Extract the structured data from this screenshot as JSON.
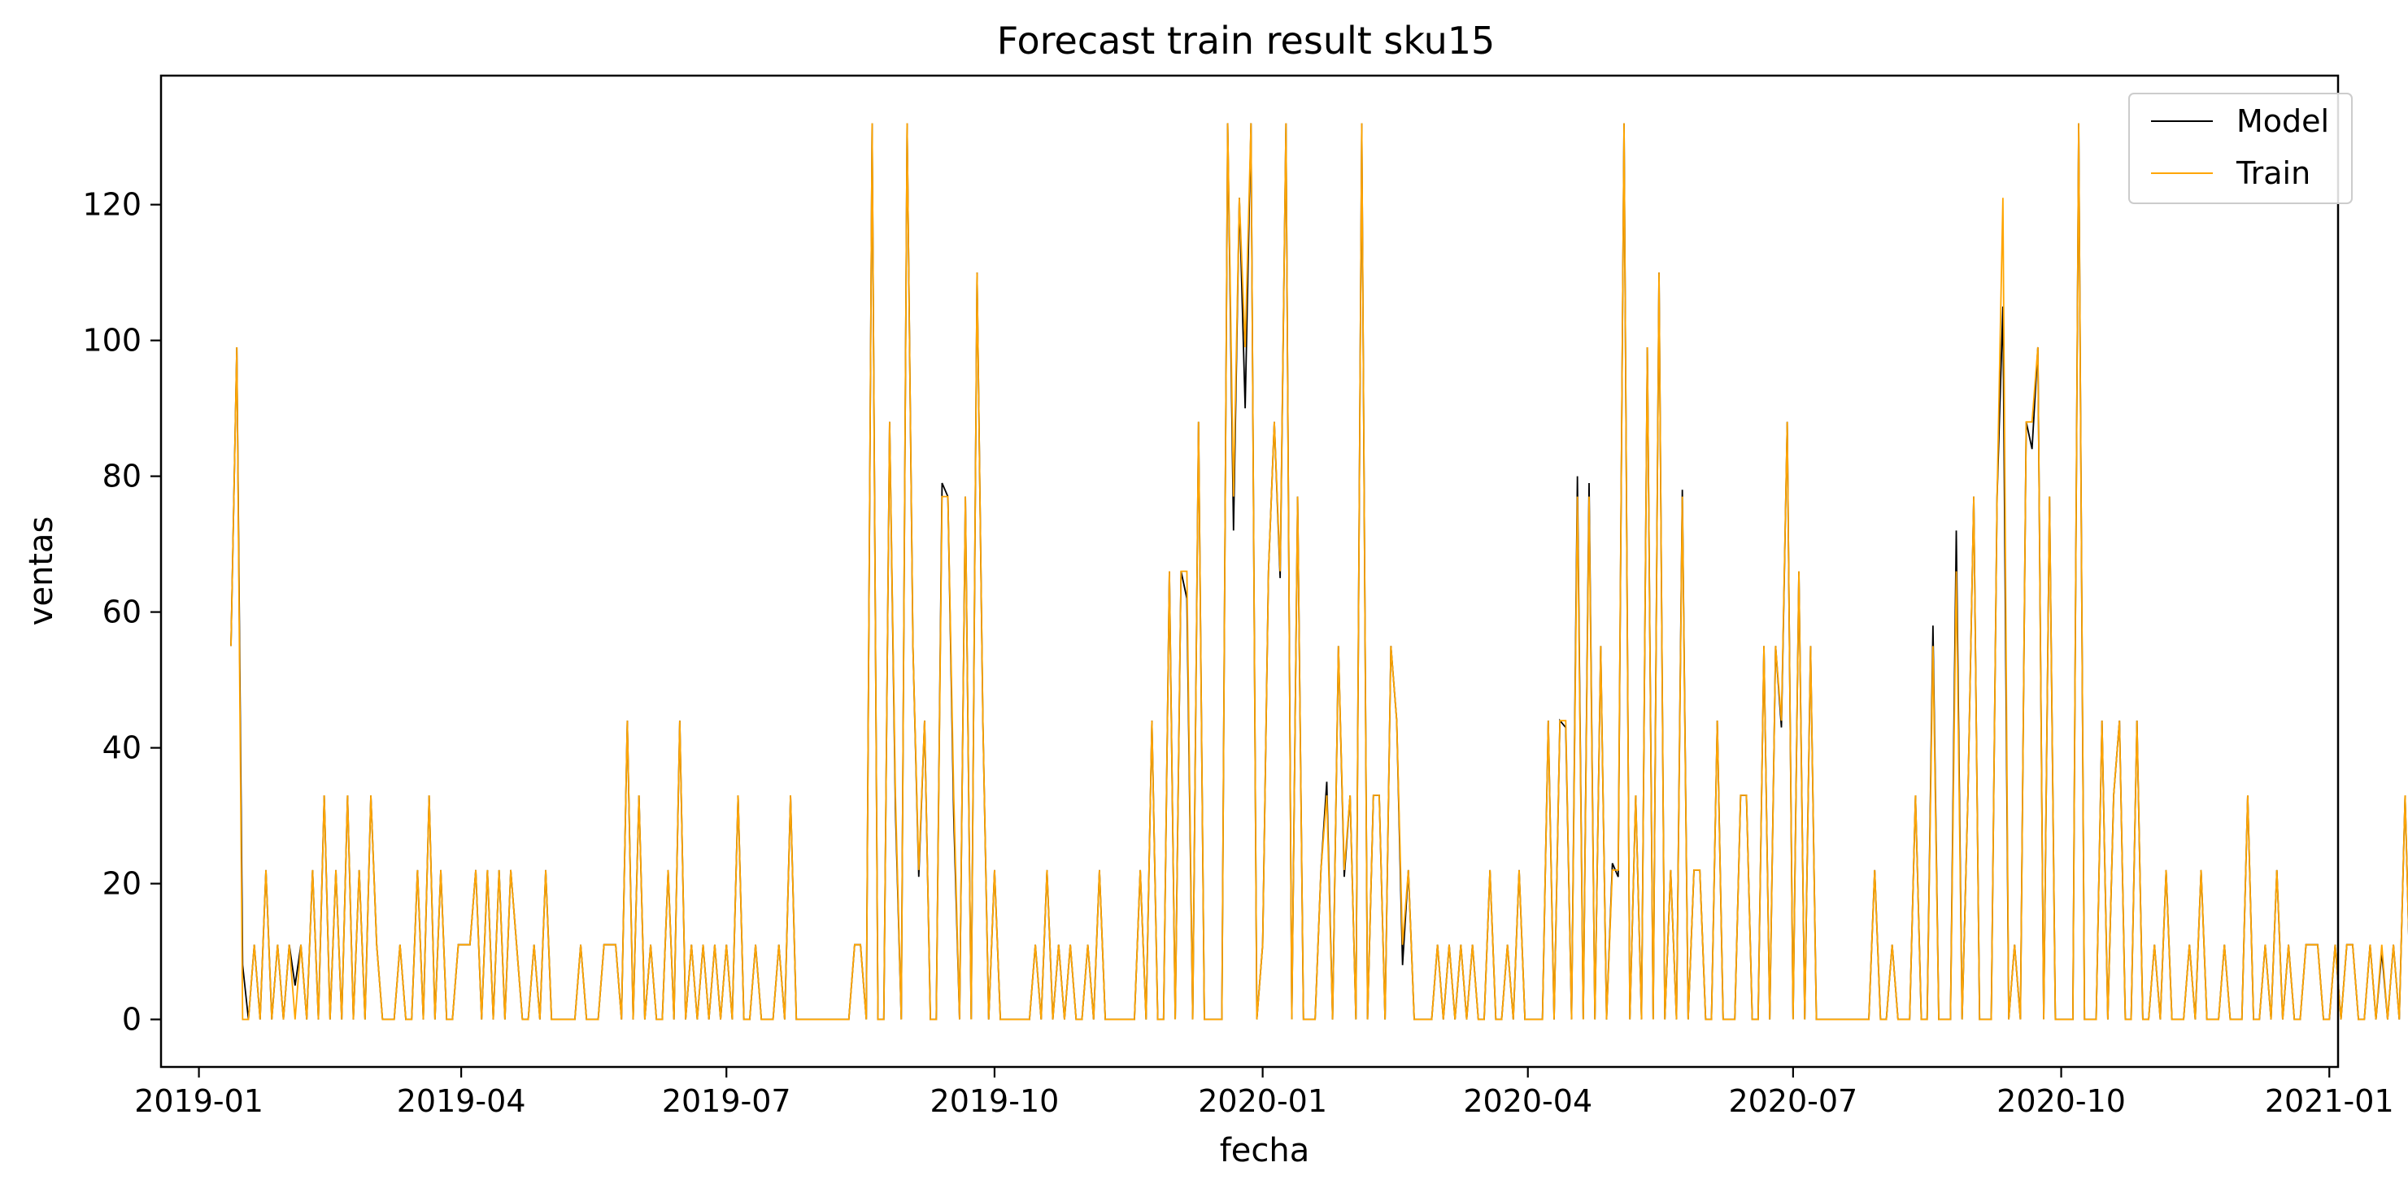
{
  "chart_data": {
    "type": "line",
    "title": "Forecast train result sku15",
    "xlabel": "fecha",
    "ylabel": "ventas",
    "x_ticks": [
      "2019-01",
      "2019-04",
      "2019-07",
      "2019-10",
      "2020-01",
      "2020-04",
      "2020-07",
      "2020-10",
      "2021-01"
    ],
    "y_ticks": [
      0,
      20,
      40,
      60,
      80,
      100,
      120
    ],
    "xlim": [
      "2018-12-19",
      "2021-01-04"
    ],
    "ylim": [
      -7,
      139
    ],
    "legend": {
      "position": "top-right",
      "entries": [
        "Model",
        "Train"
      ]
    },
    "grid": false,
    "series": [
      {
        "name": "Model",
        "color": "#000000",
        "x_start": "2019-01-12",
        "step_days": 2,
        "values": [
          55,
          99,
          8,
          0,
          11,
          0,
          22,
          0,
          11,
          0,
          11,
          5,
          11,
          0,
          22,
          0,
          33,
          0,
          22,
          0,
          33,
          0,
          22,
          0,
          33,
          11,
          0,
          0,
          0,
          11,
          0,
          0,
          22,
          0,
          33,
          0,
          22,
          0,
          0,
          11,
          11,
          11,
          22,
          0,
          22,
          0,
          22,
          0,
          22,
          11,
          0,
          0,
          11,
          0,
          22,
          0,
          0,
          0,
          0,
          0,
          11,
          0,
          0,
          0,
          11,
          11,
          11,
          0,
          44,
          0,
          33,
          0,
          11,
          0,
          0,
          22,
          0,
          44,
          0,
          11,
          0,
          11,
          0,
          11,
          0,
          11,
          0,
          33,
          0,
          0,
          11,
          0,
          0,
          0,
          11,
          0,
          33,
          0,
          0,
          0,
          0,
          0,
          0,
          0,
          0,
          0,
          0,
          11,
          11,
          0,
          132,
          0,
          0,
          88,
          31,
          0,
          132,
          55,
          21,
          44,
          0,
          0,
          79,
          77,
          30,
          0,
          77,
          0,
          110,
          44,
          0,
          22,
          0,
          0,
          0,
          0,
          0,
          0,
          11,
          0,
          22,
          0,
          11,
          0,
          11,
          0,
          0,
          11,
          0,
          22,
          0,
          0,
          0,
          0,
          0,
          0,
          22,
          0,
          44,
          0,
          0,
          66,
          0,
          66,
          62,
          0,
          88,
          0,
          0,
          0,
          0,
          132,
          72,
          121,
          90,
          132,
          0,
          11,
          66,
          88,
          65,
          132,
          0,
          77,
          0,
          0,
          0,
          22,
          35,
          0,
          55,
          21,
          33,
          0,
          132,
          0,
          33,
          33,
          0,
          55,
          44,
          8,
          22,
          0,
          0,
          0,
          0,
          11,
          0,
          11,
          0,
          11,
          0,
          11,
          0,
          0,
          22,
          0,
          0,
          11,
          0,
          22,
          0,
          0,
          0,
          0,
          44,
          0,
          44,
          43,
          0,
          80,
          0,
          79,
          0,
          55,
          0,
          23,
          21,
          132,
          0,
          33,
          0,
          99,
          0,
          110,
          0,
          22,
          0,
          78,
          0,
          22,
          22,
          0,
          0,
          44,
          0,
          0,
          0,
          33,
          33,
          0,
          0,
          55,
          0,
          55,
          43,
          88,
          0,
          66,
          0,
          55,
          0,
          0,
          0,
          0,
          0,
          0,
          0,
          0,
          0,
          0,
          22,
          0,
          0,
          11,
          0,
          0,
          0,
          33,
          0,
          0,
          58,
          0,
          0,
          0,
          72,
          0,
          33,
          77,
          0,
          0,
          0,
          77,
          105,
          0,
          11,
          0,
          88,
          84,
          99,
          0,
          77,
          0,
          0,
          0,
          0,
          132,
          0,
          0,
          0,
          44,
          0,
          33,
          44,
          0,
          0,
          44,
          0,
          0,
          11,
          0,
          22,
          0,
          0,
          0,
          11,
          0,
          22,
          0,
          0,
          0,
          11,
          0,
          0,
          0,
          33,
          0,
          0,
          11,
          0,
          22,
          0,
          11,
          0,
          0,
          11,
          11,
          11,
          0,
          0,
          11,
          0,
          11,
          11,
          0,
          0,
          11,
          0,
          10,
          0,
          11,
          0,
          33,
          0,
          0,
          11,
          0,
          0,
          0,
          11,
          0,
          11,
          0,
          0,
          26,
          0,
          11,
          0,
          0,
          0,
          11,
          0,
          0,
          33,
          0,
          0,
          0,
          0,
          0,
          11,
          0,
          0,
          22,
          0,
          0,
          11,
          0,
          0,
          0,
          11,
          0,
          0,
          33,
          0,
          0,
          11,
          0,
          22,
          0,
          11,
          0,
          0,
          11,
          0,
          0,
          11,
          0,
          0,
          20,
          0,
          11,
          0,
          11,
          0,
          22,
          0,
          0,
          11,
          0,
          0,
          31,
          0,
          0,
          11,
          33,
          0,
          22,
          0,
          22,
          0,
          22,
          0,
          0,
          0,
          22,
          0,
          33,
          0,
          0,
          0,
          55,
          0,
          99,
          0,
          0,
          0,
          0,
          0,
          0,
          55,
          0,
          0,
          110,
          0,
          0,
          0,
          22,
          0,
          77,
          0,
          66,
          0,
          0,
          22,
          0,
          44,
          0,
          0,
          0,
          0,
          0,
          33,
          0,
          22,
          0,
          0,
          0,
          0,
          0,
          0,
          33,
          0,
          0,
          0,
          0,
          0,
          0,
          0,
          77,
          0,
          0,
          113,
          0,
          0,
          0,
          66,
          44,
          0,
          0,
          121,
          0,
          88,
          0,
          0,
          0,
          99,
          55,
          0,
          0,
          0,
          66,
          0,
          0,
          0,
          0,
          0,
          55,
          0,
          0,
          0,
          0,
          0,
          0,
          0,
          0,
          132,
          55,
          0,
          55,
          0,
          0,
          0,
          55,
          0,
          0,
          0,
          0,
          110,
          0,
          0,
          22,
          0,
          0,
          0,
          33,
          0,
          0,
          0,
          0,
          0,
          11,
          0,
          0,
          11,
          0,
          0,
          0,
          11,
          0,
          11,
          0,
          0,
          33,
          0,
          0,
          0,
          0,
          0,
          22,
          22,
          0,
          77,
          0,
          55,
          0,
          22,
          0,
          66,
          0,
          0,
          0,
          45,
          0,
          0,
          44,
          0,
          0,
          0,
          0,
          77,
          0,
          44,
          0,
          0,
          0,
          105,
          0,
          0,
          0,
          57,
          0,
          0,
          0,
          0,
          0,
          0,
          0,
          22,
          22,
          0,
          33,
          0,
          11,
          0,
          0,
          22,
          0,
          0,
          22,
          0,
          0,
          0,
          11,
          11,
          22,
          0,
          0,
          0,
          22,
          0,
          0,
          33,
          0,
          0,
          88,
          0,
          33,
          33
        ]
      },
      {
        "name": "Train",
        "color": "#ffa500",
        "x_start": "2019-01-12",
        "step_days": 2,
        "values": [
          55,
          99,
          0,
          0,
          11,
          0,
          22,
          0,
          11,
          0,
          11,
          0,
          11,
          0,
          22,
          0,
          33,
          0,
          22,
          0,
          33,
          0,
          22,
          0,
          33,
          11,
          0,
          0,
          0,
          11,
          0,
          0,
          22,
          0,
          33,
          0,
          22,
          0,
          0,
          11,
          11,
          11,
          22,
          0,
          22,
          0,
          22,
          0,
          22,
          11,
          0,
          0,
          11,
          0,
          22,
          0,
          0,
          0,
          0,
          0,
          11,
          0,
          0,
          0,
          11,
          11,
          11,
          0,
          44,
          0,
          33,
          0,
          11,
          0,
          0,
          22,
          0,
          44,
          0,
          11,
          0,
          11,
          0,
          11,
          0,
          11,
          0,
          33,
          0,
          0,
          11,
          0,
          0,
          0,
          11,
          0,
          33,
          0,
          0,
          0,
          0,
          0,
          0,
          0,
          0,
          0,
          0,
          11,
          11,
          0,
          132,
          0,
          0,
          88,
          33,
          0,
          132,
          55,
          22,
          44,
          0,
          0,
          77,
          77,
          33,
          0,
          77,
          0,
          110,
          44,
          0,
          22,
          0,
          0,
          0,
          0,
          0,
          0,
          11,
          0,
          22,
          0,
          11,
          0,
          11,
          0,
          0,
          11,
          0,
          22,
          0,
          0,
          0,
          0,
          0,
          0,
          22,
          0,
          44,
          0,
          0,
          66,
          0,
          66,
          66,
          0,
          88,
          0,
          0,
          0,
          0,
          132,
          77,
          121,
          99,
          132,
          0,
          11,
          66,
          88,
          66,
          132,
          0,
          77,
          0,
          0,
          0,
          22,
          33,
          0,
          55,
          22,
          33,
          0,
          132,
          0,
          33,
          33,
          0,
          55,
          44,
          11,
          22,
          0,
          0,
          0,
          0,
          11,
          0,
          11,
          0,
          11,
          0,
          11,
          0,
          0,
          22,
          0,
          0,
          11,
          0,
          22,
          0,
          0,
          0,
          0,
          44,
          0,
          44,
          44,
          0,
          77,
          0,
          77,
          0,
          55,
          0,
          22,
          22,
          132,
          0,
          33,
          0,
          99,
          0,
          110,
          0,
          22,
          0,
          77,
          0,
          22,
          22,
          0,
          0,
          44,
          0,
          0,
          0,
          33,
          33,
          0,
          0,
          55,
          0,
          55,
          44,
          88,
          0,
          66,
          0,
          55,
          0,
          0,
          0,
          0,
          0,
          0,
          0,
          0,
          0,
          0,
          22,
          0,
          0,
          11,
          0,
          0,
          0,
          33,
          0,
          0,
          55,
          0,
          0,
          0,
          66,
          0,
          33,
          77,
          0,
          0,
          0,
          77,
          121,
          0,
          11,
          0,
          88,
          88,
          99,
          0,
          77,
          0,
          0,
          0,
          0,
          132,
          0,
          0,
          0,
          44,
          0,
          33,
          44,
          0,
          0,
          44,
          0,
          0,
          11,
          0,
          22,
          0,
          0,
          0,
          11,
          0,
          22,
          0,
          0,
          0,
          11,
          0,
          0,
          0,
          33,
          0,
          0,
          11,
          0,
          22,
          0,
          11,
          0,
          0,
          11,
          11,
          11,
          0,
          0,
          11,
          0,
          11,
          11,
          0,
          0,
          11,
          0,
          11,
          0,
          11,
          0,
          33,
          0,
          0,
          11,
          0,
          0,
          0,
          11,
          0,
          11,
          0,
          0,
          26,
          0,
          11,
          0,
          0,
          0,
          11,
          0,
          0,
          33,
          0,
          0,
          0,
          0,
          0,
          11,
          0,
          0,
          22,
          0,
          0,
          11,
          0,
          0,
          0,
          11,
          0,
          0,
          33,
          0,
          0,
          11,
          0,
          22,
          0,
          11,
          0,
          0,
          11,
          0,
          0,
          11,
          0,
          0,
          22,
          0,
          11,
          0,
          11,
          0,
          22,
          0,
          0,
          11,
          0,
          0,
          33,
          0,
          0,
          11,
          33,
          0,
          22,
          0,
          22,
          0,
          22,
          0,
          0,
          0,
          22,
          0,
          33,
          0,
          0,
          0,
          55,
          0,
          99,
          0,
          0,
          0,
          0,
          0,
          0,
          55,
          0,
          0,
          110,
          0,
          0,
          0,
          22,
          0,
          77,
          0,
          66,
          0,
          0,
          22,
          0,
          44,
          0,
          0,
          0,
          0,
          0,
          33,
          0,
          22,
          0,
          0,
          0,
          0,
          0,
          0,
          33,
          0,
          0,
          0,
          0,
          0,
          0,
          0,
          77,
          0,
          0,
          110,
          0,
          0,
          0,
          66,
          44,
          0,
          0,
          121,
          0,
          88,
          0,
          0,
          0,
          99,
          55,
          0,
          0,
          0,
          66,
          0,
          0,
          0,
          0,
          0,
          55,
          0,
          0,
          0,
          0,
          0,
          0,
          0,
          0,
          132,
          55,
          0,
          55,
          0,
          0,
          0,
          55,
          0,
          0,
          0,
          0,
          110,
          0,
          0,
          22,
          0,
          0,
          0,
          33,
          0,
          0,
          0,
          0,
          0,
          11,
          0,
          0,
          11,
          0,
          0,
          0,
          11,
          0,
          11,
          0,
          0,
          33,
          0,
          0,
          0,
          0,
          0,
          22,
          22,
          0,
          77,
          0,
          55,
          0,
          22,
          0,
          66,
          0,
          0,
          0,
          44,
          0,
          0,
          44,
          0,
          0,
          0,
          0,
          77,
          0,
          44,
          0,
          0,
          0,
          99,
          0,
          0,
          0,
          55,
          0,
          0,
          0,
          0,
          0,
          0,
          0,
          22,
          22,
          0,
          33,
          0,
          11,
          0,
          0,
          22,
          0,
          0,
          22,
          0,
          0,
          0,
          11,
          11,
          22,
          0,
          0,
          0,
          22,
          0,
          0,
          33,
          0,
          0,
          88,
          0,
          33,
          33
        ]
      }
    ]
  }
}
